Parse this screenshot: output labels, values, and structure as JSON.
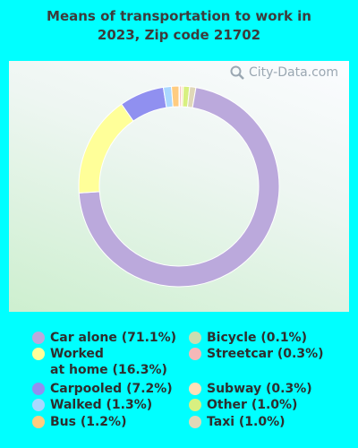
{
  "title_line1": "Means of transportation to work in",
  "title_line2": "2023, Zip code 21702",
  "watermark": "City-Data.com",
  "chart_data": {
    "type": "pie",
    "title": "Means of transportation to work in 2023, Zip code 21702",
    "slices": [
      {
        "label": "Car alone (71.1%)",
        "value": 71.1,
        "color": "#bba9dc"
      },
      {
        "label": "Worked\nat home (16.3%)",
        "value": 16.3,
        "color": "#ffff99"
      },
      {
        "label": "Carpooled (7.2%)",
        "value": 7.2,
        "color": "#9090f0"
      },
      {
        "label": "Walked (1.3%)",
        "value": 1.3,
        "color": "#aad8ff"
      },
      {
        "label": "Bus (1.2%)",
        "value": 1.2,
        "color": "#ffcc80"
      },
      {
        "label": "Bicycle (0.1%)",
        "value": 0.1,
        "color": "#c8deb0"
      },
      {
        "label": "Streetcar (0.3%)",
        "value": 0.3,
        "color": "#f4b8b8"
      },
      {
        "label": "Subway (0.3%)",
        "value": 0.3,
        "color": "#ffe0b8"
      },
      {
        "label": "Other (1.0%)",
        "value": 1.0,
        "color": "#d8f080"
      },
      {
        "label": "Taxi (1.0%)",
        "value": 1.0,
        "color": "#e0d8b8"
      }
    ],
    "draw_order": [
      5,
      6,
      7,
      8,
      9,
      0,
      1,
      2,
      3,
      4
    ],
    "legend_placement": "bottom, two columns"
  }
}
